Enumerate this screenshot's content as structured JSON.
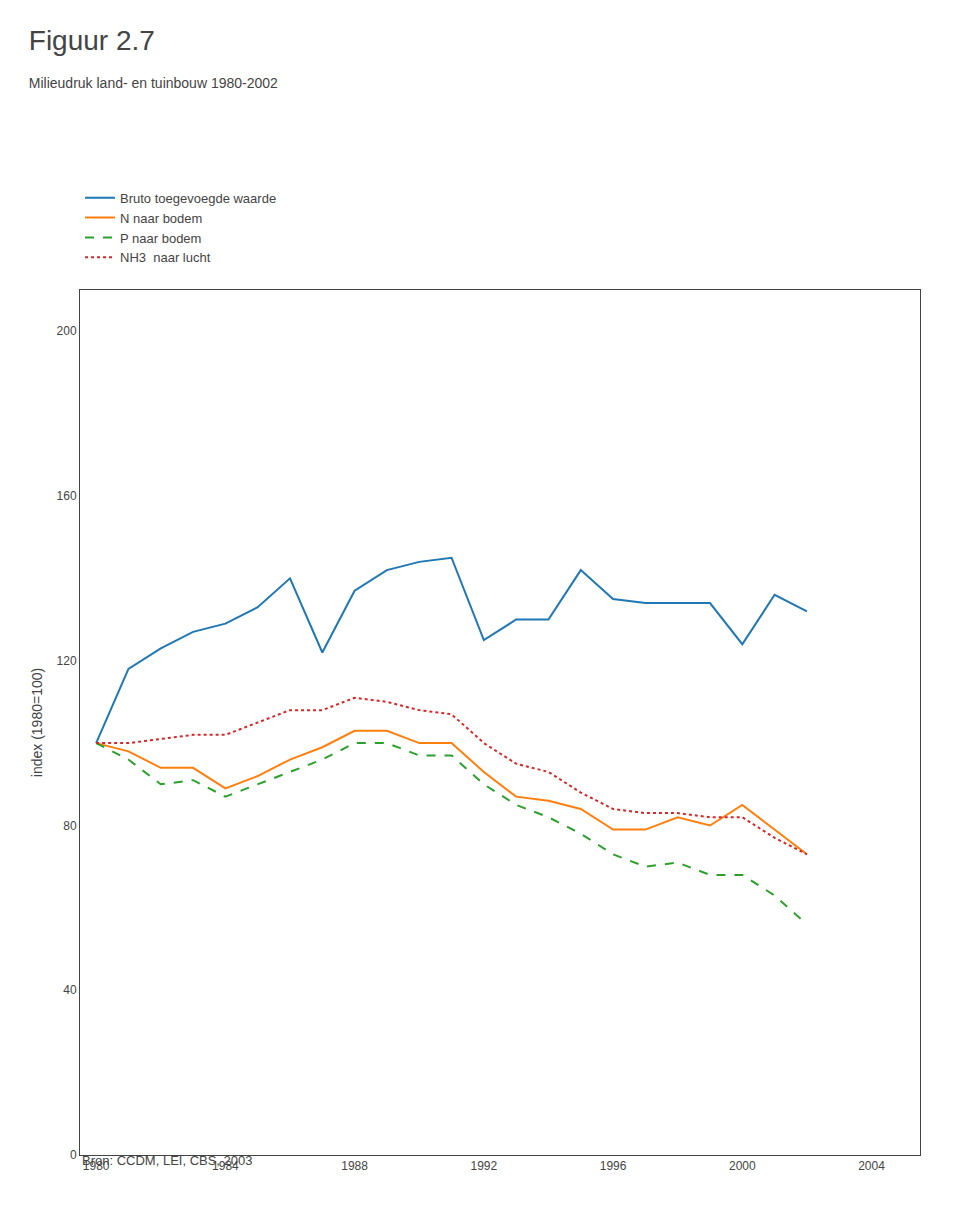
{
  "chart_data": {
    "type": "line",
    "title": "Figuur 2.7",
    "subtitle": "Milieudruk land- en tuinbouw 1980-2002",
    "annotations": [
      "Bron: CCDM, LEI, CBS, 2003"
    ],
    "ylabel": "index (1980=100)",
    "x": [
      1980,
      1981,
      1982,
      1983,
      1984,
      1985,
      1986,
      1987,
      1988,
      1989,
      1990,
      1991,
      1992,
      1993,
      1994,
      1995,
      1996,
      1997,
      1998,
      1999,
      2000,
      2001,
      2002
    ],
    "series": [
      {
        "name": "Bruto toegevoegde waarde",
        "line_style": "solid",
        "values": [
          100,
          118,
          123,
          127,
          129,
          133,
          140,
          122,
          137,
          142,
          144,
          145,
          125,
          130,
          130,
          142,
          135,
          134,
          134,
          134,
          124,
          136,
          132
        ]
      },
      {
        "name": "N naar bodem",
        "line_style": "solid",
        "values": [
          100,
          98,
          94,
          94,
          89,
          92,
          96,
          99,
          103,
          103,
          100,
          100,
          93,
          87,
          86,
          84,
          79,
          79,
          82,
          80,
          85,
          79,
          73
        ]
      },
      {
        "name": "P naar bodem",
        "line_style": "dashed",
        "values": [
          100,
          96,
          90,
          91,
          87,
          90,
          93,
          96,
          100,
          100,
          97,
          97,
          90,
          85,
          82,
          78,
          73,
          70,
          71,
          68,
          68,
          63,
          56
        ]
      },
      {
        "name": "NH3  naar lucht",
        "line_style": "dotted",
        "values": [
          100,
          100,
          101,
          102,
          102,
          105,
          108,
          108,
          111,
          110,
          108,
          107,
          100,
          95,
          93,
          88,
          84,
          83,
          83,
          82,
          82,
          77,
          73
        ]
      }
    ],
    "xlim": [
      1979.5,
      2005.5
    ],
    "xticks": [
      1980,
      1984,
      1988,
      1992,
      1996,
      2000,
      2004
    ],
    "ylim": [
      0,
      210
    ],
    "yticks": [
      0,
      40,
      80,
      120,
      160,
      200
    ],
    "grid": false,
    "legend": "upper left"
  }
}
